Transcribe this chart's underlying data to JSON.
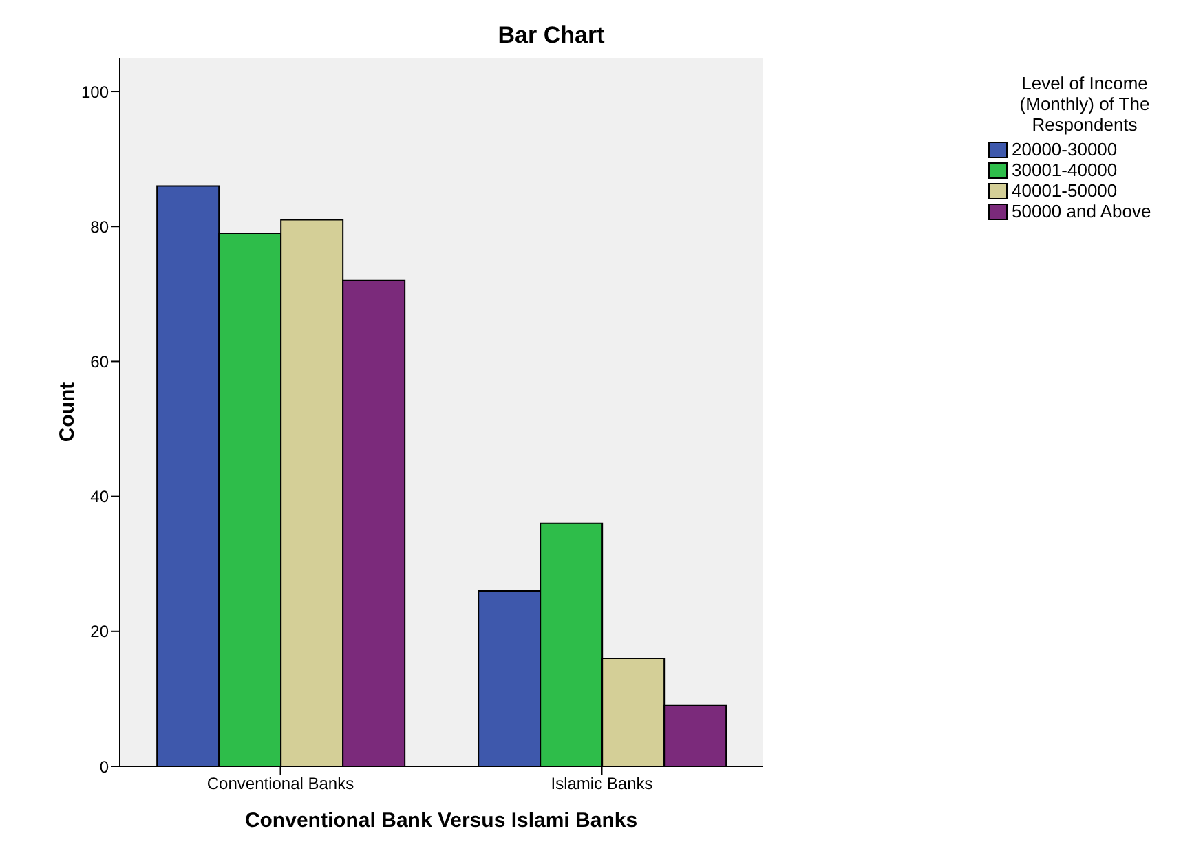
{
  "chart_data": {
    "type": "bar",
    "title": "Bar Chart",
    "xlabel": "Conventional Bank Versus Islami Banks",
    "ylabel": "Count",
    "legend_title": "Level of Income (Monthly) of The Respondents",
    "categories": [
      "Conventional Banks",
      "Islamic Banks"
    ],
    "series": [
      {
        "name": "20000-30000",
        "color": "#3e58ac",
        "values": [
          86,
          26
        ]
      },
      {
        "name": "30001-40000",
        "color": "#2ebd4a",
        "values": [
          79,
          36
        ]
      },
      {
        "name": "40001-50000",
        "color": "#d4cf97",
        "values": [
          81,
          16
        ]
      },
      {
        "name": "50000 and Above",
        "color": "#7b2a7b",
        "values": [
          72,
          9
        ]
      }
    ],
    "ylim": [
      0,
      105
    ],
    "yticks": [
      0,
      20,
      40,
      60,
      80,
      100
    ],
    "grid": false,
    "legend": "top right"
  }
}
